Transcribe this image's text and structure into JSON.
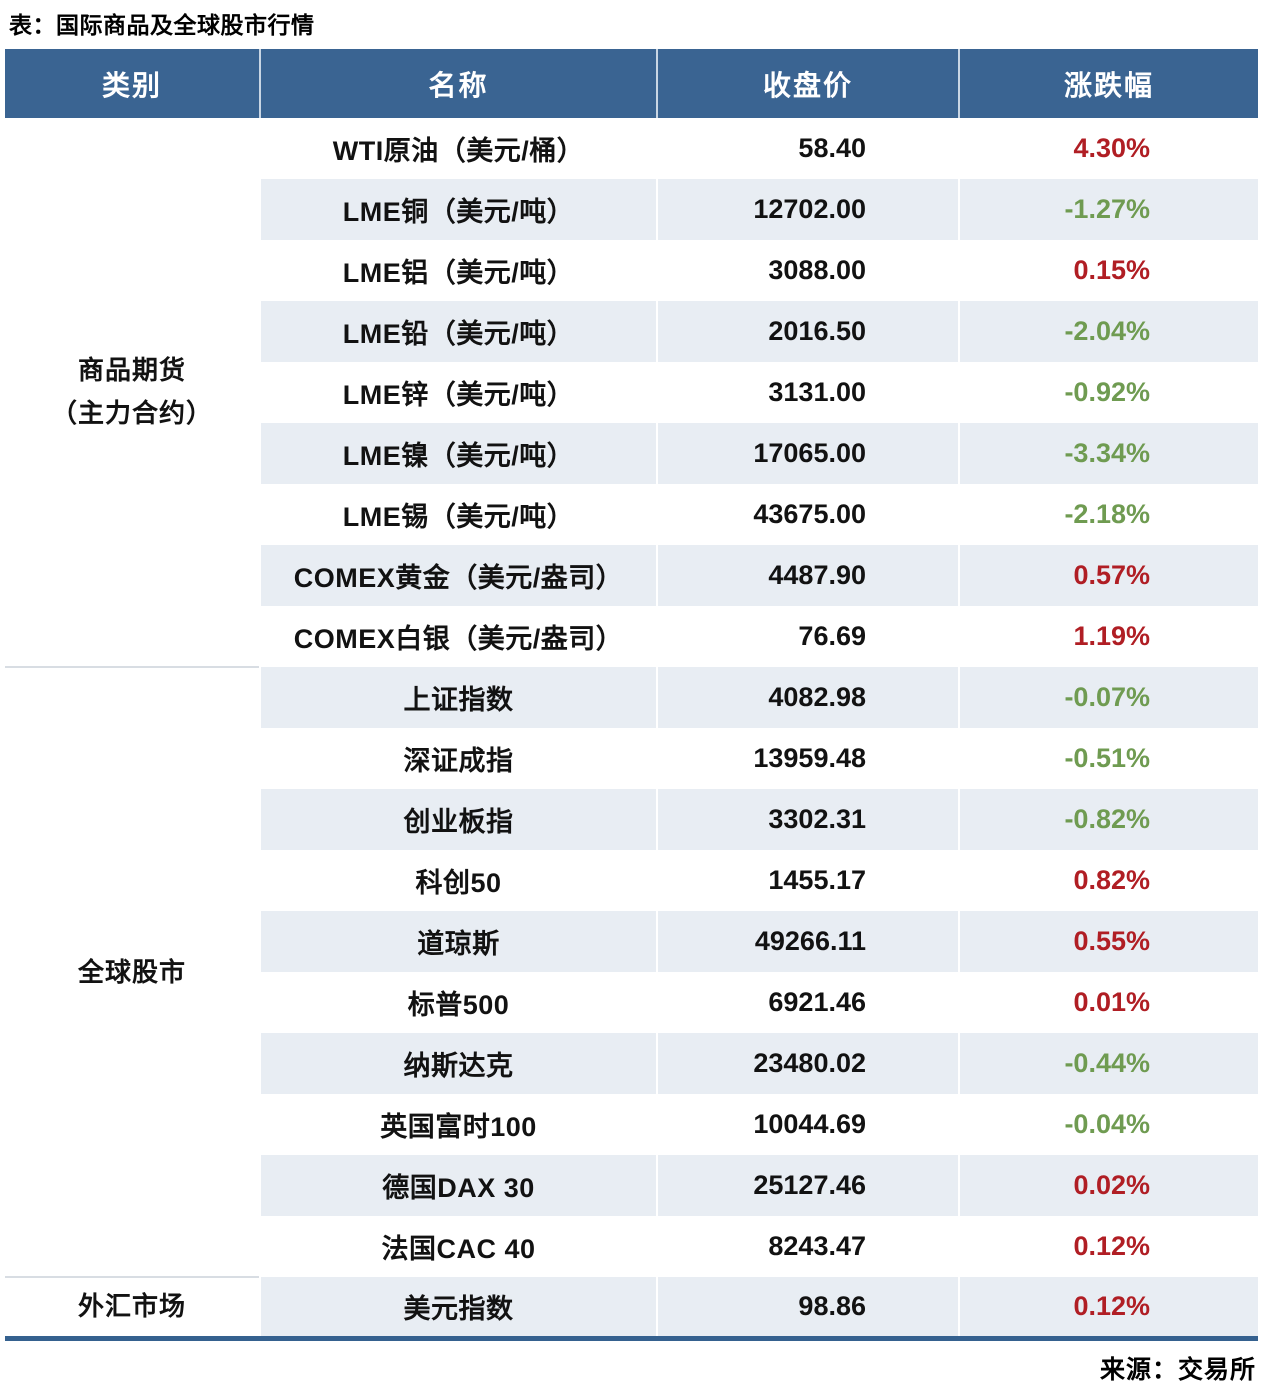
{
  "title": "表：国际商品及全球股市行情",
  "source": "来源：交易所",
  "chart_data": {
    "type": "table",
    "title": "表：国际商品及全球股市行情",
    "columns": [
      "类别",
      "名称",
      "收盘价",
      "涨跌幅"
    ],
    "groups": [
      {
        "category": [
          "商品期货",
          "（主力合约）"
        ],
        "rows": [
          {
            "name": "WTI原油（美元/桶）",
            "close": "58.40",
            "change": "4.30%",
            "direction": "up"
          },
          {
            "name": "LME铜（美元/吨）",
            "close": "12702.00",
            "change": "-1.27%",
            "direction": "down"
          },
          {
            "name": "LME铝（美元/吨）",
            "close": "3088.00",
            "change": "0.15%",
            "direction": "up"
          },
          {
            "name": "LME铅（美元/吨）",
            "close": "2016.50",
            "change": "-2.04%",
            "direction": "down"
          },
          {
            "name": "LME锌（美元/吨）",
            "close": "3131.00",
            "change": "-0.92%",
            "direction": "down"
          },
          {
            "name": "LME镍（美元/吨）",
            "close": "17065.00",
            "change": "-3.34%",
            "direction": "down"
          },
          {
            "name": "LME锡（美元/吨）",
            "close": "43675.00",
            "change": "-2.18%",
            "direction": "down"
          },
          {
            "name": "COMEX黄金（美元/盎司）",
            "close": "4487.90",
            "change": "0.57%",
            "direction": "up"
          },
          {
            "name": "COMEX白银（美元/盎司）",
            "close": "76.69",
            "change": "1.19%",
            "direction": "up"
          }
        ]
      },
      {
        "category": [
          "全球股市"
        ],
        "rows": [
          {
            "name": "上证指数",
            "close": "4082.98",
            "change": "-0.07%",
            "direction": "down"
          },
          {
            "name": "深证成指",
            "close": "13959.48",
            "change": "-0.51%",
            "direction": "down"
          },
          {
            "name": "创业板指",
            "close": "3302.31",
            "change": "-0.82%",
            "direction": "down"
          },
          {
            "name": "科创50",
            "close": "1455.17",
            "change": "0.82%",
            "direction": "up"
          },
          {
            "name": "道琼斯",
            "close": "49266.11",
            "change": "0.55%",
            "direction": "up"
          },
          {
            "name": "标普500",
            "close": "6921.46",
            "change": "0.01%",
            "direction": "up"
          },
          {
            "name": "纳斯达克",
            "close": "23480.02",
            "change": "-0.44%",
            "direction": "down"
          },
          {
            "name": "英国富时100",
            "close": "10044.69",
            "change": "-0.04%",
            "direction": "down"
          },
          {
            "name": "德国DAX 30",
            "close": "25127.46",
            "change": "0.02%",
            "direction": "up"
          },
          {
            "name": "法国CAC 40",
            "close": "8243.47",
            "change": "0.12%",
            "direction": "up"
          }
        ]
      },
      {
        "category": [
          "外汇市场"
        ],
        "rows": [
          {
            "name": "美元指数",
            "close": "98.86",
            "change": "0.12%",
            "direction": "up"
          }
        ]
      }
    ],
    "notes": "来源：交易所",
    "layout": {
      "banded_rows": true,
      "positive_style": "red",
      "negative_style": "green",
      "legend_position": "none"
    }
  },
  "colors": {
    "header_bg": "#3a6492",
    "header_text": "#ffffff",
    "band_row": "#e8edf3",
    "up": "#b01e24",
    "down": "#6f9b51",
    "group_divider": "#d8dde3",
    "bottom_border": "#35618f"
  }
}
